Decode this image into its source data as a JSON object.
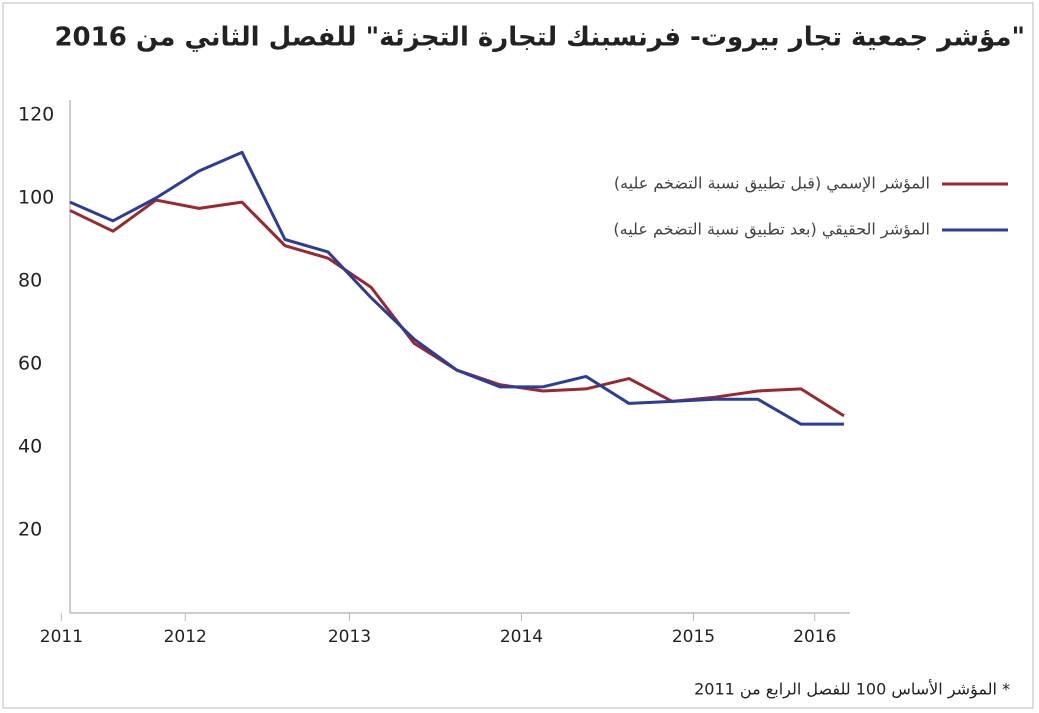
{
  "chart_data": {
    "type": "line",
    "title": "\"مؤشر جمعية تجار بيروت- فرنسبنك لتجارة التجزئة\"  للفصل الثاني من 2016",
    "note": "* المؤشر الأساس 100 للفصل الرابع من 2011",
    "x": [
      2011.75,
      2012,
      2012.25,
      2012.5,
      2012.75,
      2013,
      2013.25,
      2013.5,
      2013.75,
      2014,
      2014.25,
      2014.5,
      2014.75,
      2015,
      2015.25,
      2015.5,
      2015.75,
      2016,
      2016.25
    ],
    "series": [
      {
        "name": "المؤشر الإسمي (قبل تطبيق نسبة التضخم عليه)",
        "color": "#9b2830",
        "values": [
          97,
          92,
          99.5,
          97.5,
          99,
          88.5,
          85.5,
          78.5,
          65,
          58.5,
          55,
          53.5,
          54,
          56.5,
          51,
          52,
          53.5,
          54,
          47.5
        ]
      },
      {
        "name": "المؤشر الحقيقي (بعد تطبيق نسبة التضخم عليه)",
        "color": "#2b3d98",
        "values": [
          99,
          94.5,
          100,
          106.5,
          111,
          90,
          87,
          76,
          66,
          58.5,
          54.5,
          54.5,
          57,
          50.5,
          51,
          51.5,
          51.5,
          45.5,
          45.5
        ]
      }
    ],
    "xlim": [
      2011.75,
      2016.25
    ],
    "xticks": [
      {
        "value": 2011.7,
        "label": "2011"
      },
      {
        "value": 2012.42,
        "label": "2012"
      },
      {
        "value": 2013.375,
        "label": "2013"
      },
      {
        "value": 2014.375,
        "label": "2014"
      },
      {
        "value": 2015.375,
        "label": "2015"
      },
      {
        "value": 2016.08,
        "label": "2016"
      }
    ],
    "ylim": [
      0,
      120
    ],
    "yticks": [
      20,
      40,
      60,
      80,
      100,
      120
    ],
    "grid": false,
    "legend": "upper right"
  }
}
